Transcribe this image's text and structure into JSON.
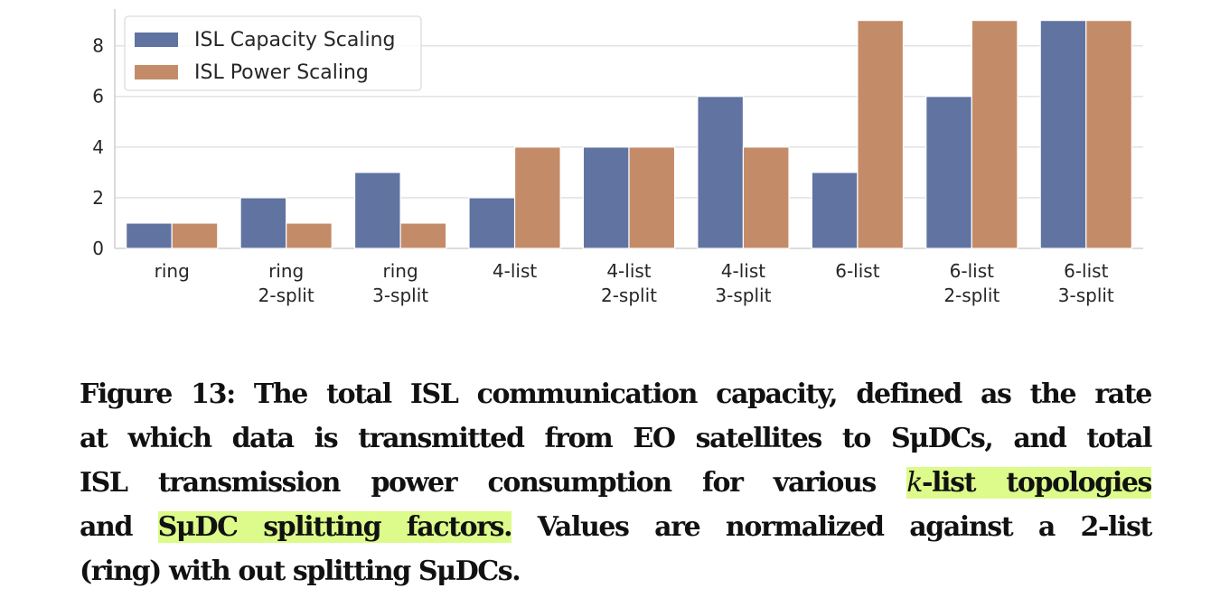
{
  "chart_data": {
    "type": "bar",
    "categories": [
      "ring",
      "ring\n2-split",
      "ring\n3-split",
      "4-list",
      "4-list\n2-split",
      "4-list\n3-split",
      "6-list",
      "6-list\n2-split",
      "6-list\n3-split"
    ],
    "series": [
      {
        "name": "ISL Capacity Scaling",
        "color": "#6073a1",
        "values": [
          1,
          2,
          3,
          2,
          4,
          6,
          3,
          6,
          9
        ]
      },
      {
        "name": "ISL Power Scaling",
        "color": "#c48b68",
        "values": [
          1,
          1,
          1,
          4,
          4,
          4,
          9,
          9,
          9
        ]
      }
    ],
    "yticks": [
      0,
      2,
      4,
      6,
      8
    ],
    "ylim": [
      0,
      9.45
    ],
    "grid": true,
    "legend": "top-left",
    "title": "",
    "xlabel": "",
    "ylabel": ""
  },
  "caption": {
    "highlight_color": "#dcfb8a",
    "lines": [
      [
        {
          "t": "Figure 13: The total ISL communication capacity, defined as the rate"
        }
      ],
      [
        {
          "t": "at which data is transmitted from EO satellites to SμDCs, and total"
        }
      ],
      [
        {
          "t": "ISL transmission power consumption for various "
        },
        {
          "t": "k",
          "hl": true,
          "it": true
        },
        {
          "t": "-list topologies",
          "hl": true
        }
      ],
      [
        {
          "t": "and "
        },
        {
          "t": "SμDC splitting factors.",
          "hl": true
        },
        {
          "t": " Values are normalized against a 2-list"
        }
      ],
      [
        {
          "t": "(ring) with out splitting SμDCs."
        }
      ]
    ]
  }
}
